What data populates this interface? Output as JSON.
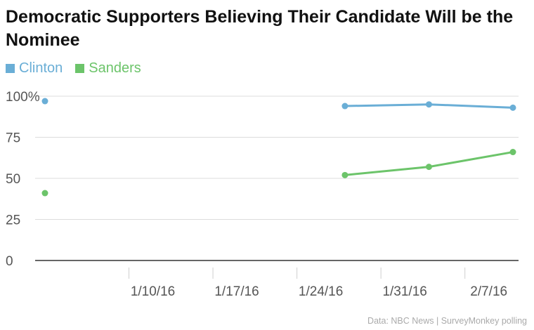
{
  "chart_data": {
    "type": "line",
    "title": "Democratic Supporters Believing Their Candidate Will be the Nominee",
    "xlabel": "",
    "ylabel": "",
    "ylim": [
      0,
      100
    ],
    "yticks": [
      "100%",
      "75",
      "50",
      "25",
      "0"
    ],
    "ytick_values": [
      100,
      75,
      50,
      25,
      0
    ],
    "x_range": [
      "2016-01-03",
      "2016-02-11"
    ],
    "xticks": [
      "1/10/16",
      "1/17/16",
      "1/24/16",
      "1/31/16",
      "2/7/16"
    ],
    "xtick_dates": [
      "2016-01-10",
      "2016-01-17",
      "2016-01-24",
      "2016-01-31",
      "2016-02-07"
    ],
    "grid": true,
    "legend_position": "top-left",
    "series": [
      {
        "name": "Clinton",
        "color": "#6aaed6",
        "points": [
          {
            "x": "2016-01-03",
            "y": 97
          },
          {
            "x": "2016-01-28",
            "y": 94
          },
          {
            "x": "2016-02-04",
            "y": 95
          },
          {
            "x": "2016-02-11",
            "y": 93
          }
        ]
      },
      {
        "name": "Sanders",
        "color": "#6cc46a",
        "points": [
          {
            "x": "2016-01-03",
            "y": 41
          },
          {
            "x": "2016-01-28",
            "y": 52
          },
          {
            "x": "2016-02-04",
            "y": 57
          },
          {
            "x": "2016-02-11",
            "y": 66
          }
        ]
      }
    ],
    "source": "Data: NBC News | SurveyMonkey polling"
  }
}
